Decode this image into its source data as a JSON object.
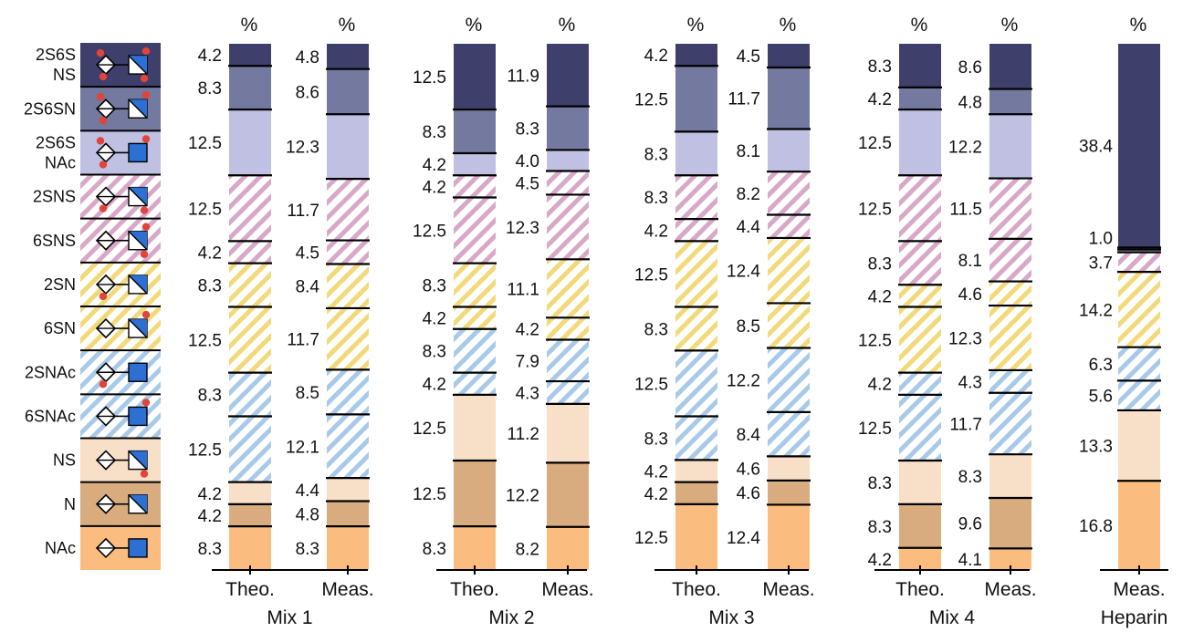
{
  "chart_data": {
    "type": "stacked-bar",
    "unit_label": "%",
    "colors": {
      "2S6SNS": "#3f3f6b",
      "2S6SN": "#74799f",
      "2S6SNAc": "#bfc0e2",
      "2SNS": "#d7a8c7",
      "6SNS": "#d7a8c7",
      "2SN": "#f2d979",
      "6SN": "#f2d979",
      "2SNAc": "#a9c9e8",
      "6SNAc": "#a9c9e8",
      "NS": "#f8dfc7",
      "N": "#d8ac7f",
      "NAc": "#fbbd7f"
    },
    "legend": [
      {
        "key": "2S6SNS",
        "lines": [
          "2S6S",
          "NS"
        ],
        "hatch": false,
        "square": "half",
        "dots": [
          "top",
          "bottom",
          "sq-top",
          "sq-bottom"
        ]
      },
      {
        "key": "2S6SN",
        "lines": [
          "2S6SN"
        ],
        "hatch": false,
        "square": "half",
        "dots": [
          "top",
          "bottom",
          "sq-top"
        ]
      },
      {
        "key": "2S6SNAc",
        "lines": [
          "2S6S",
          "NAc"
        ],
        "hatch": false,
        "square": "full",
        "dots": [
          "top",
          "bottom",
          "sq-top"
        ]
      },
      {
        "key": "2SNS",
        "lines": [
          "2SNS"
        ],
        "hatch": true,
        "square": "half",
        "dots": [
          "bottom",
          "sq-bottom"
        ]
      },
      {
        "key": "6SNS",
        "lines": [
          "6SNS"
        ],
        "hatch": true,
        "square": "half",
        "dots": [
          "sq-top",
          "sq-bottom"
        ]
      },
      {
        "key": "2SN",
        "lines": [
          "2SN"
        ],
        "hatch": true,
        "square": "half",
        "dots": [
          "bottom"
        ]
      },
      {
        "key": "6SN",
        "lines": [
          "6SN"
        ],
        "hatch": true,
        "square": "half",
        "dots": [
          "sq-top"
        ]
      },
      {
        "key": "2SNAc",
        "lines": [
          "2SNAc"
        ],
        "hatch": true,
        "square": "full",
        "dots": [
          "bottom"
        ]
      },
      {
        "key": "6SNAc",
        "lines": [
          "6SNAc"
        ],
        "hatch": true,
        "square": "full",
        "dots": [
          "sq-top"
        ]
      },
      {
        "key": "NS",
        "lines": [
          "NS"
        ],
        "hatch": false,
        "square": "half",
        "dots": [
          "sq-bottom"
        ]
      },
      {
        "key": "N",
        "lines": [
          "N"
        ],
        "hatch": false,
        "square": "half",
        "dots": []
      },
      {
        "key": "NAc",
        "lines": [
          "NAc"
        ],
        "hatch": false,
        "square": "full",
        "dots": []
      }
    ],
    "groups": [
      {
        "name": "Mix 1",
        "bars": [
          {
            "label": "Theo.",
            "values": [
              4.2,
              8.3,
              12.5,
              12.5,
              4.2,
              8.3,
              12.5,
              8.3,
              12.5,
              4.2,
              4.2,
              8.3
            ]
          },
          {
            "label": "Meas.",
            "values": [
              4.8,
              8.6,
              12.3,
              11.7,
              4.5,
              8.4,
              11.7,
              8.5,
              12.1,
              4.4,
              4.8,
              8.3
            ]
          }
        ]
      },
      {
        "name": "Mix 2",
        "bars": [
          {
            "label": "Theo.",
            "values": [
              12.5,
              8.3,
              4.2,
              4.2,
              12.5,
              8.3,
              4.2,
              8.3,
              4.2,
              12.5,
              12.5,
              8.3
            ]
          },
          {
            "label": "Meas.",
            "values": [
              11.9,
              8.3,
              4.0,
              4.5,
              12.3,
              11.1,
              4.2,
              7.9,
              4.3,
              11.2,
              12.2,
              8.2
            ]
          }
        ]
      },
      {
        "name": "Mix 3",
        "bars": [
          {
            "label": "Theo.",
            "values": [
              4.2,
              12.5,
              8.3,
              8.3,
              4.2,
              12.5,
              8.3,
              12.5,
              8.3,
              4.2,
              4.2,
              12.5
            ]
          },
          {
            "label": "Meas.",
            "values": [
              4.5,
              11.7,
              8.1,
              8.2,
              4.4,
              12.4,
              8.5,
              12.2,
              8.4,
              4.6,
              4.6,
              12.4
            ]
          }
        ]
      },
      {
        "name": "Mix 4",
        "bars": [
          {
            "label": "Theo.",
            "values": [
              8.3,
              4.2,
              12.5,
              12.5,
              8.3,
              4.2,
              12.5,
              4.2,
              12.5,
              8.3,
              8.3,
              4.2
            ]
          },
          {
            "label": "Meas.",
            "values": [
              8.6,
              4.8,
              12.2,
              11.5,
              8.1,
              4.6,
              12.3,
              4.3,
              11.7,
              8.3,
              9.6,
              4.1
            ]
          }
        ]
      },
      {
        "name": "Heparin",
        "bars": [
          {
            "label": "Meas.",
            "values": [
              38.4,
              0.4,
              0.5,
              3.7,
              0,
              0,
              14.2,
              6.3,
              5.6,
              13.3,
              0,
              16.8
            ]
          }
        ]
      }
    ],
    "printed_labels": {
      "Heparin": [
        "38.4",
        "1.0",
        "3.7",
        "14.2",
        "6.3",
        "5.6",
        "13.3",
        "16.8"
      ]
    }
  }
}
